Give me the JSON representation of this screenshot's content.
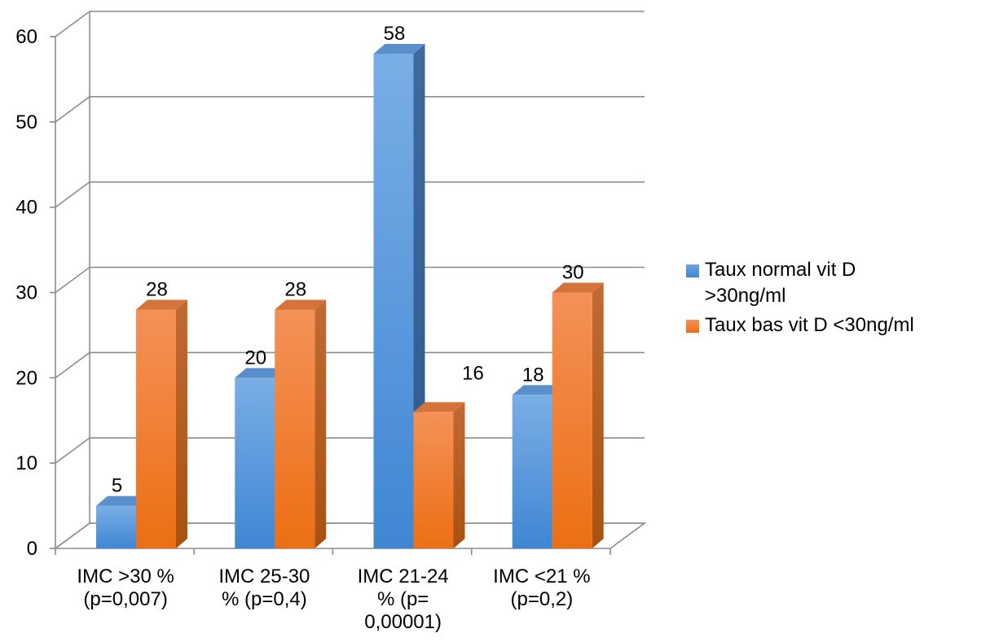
{
  "chart_data": {
    "type": "bar",
    "categories": [
      [
        "IMC >30 %",
        "(p=0,007)"
      ],
      [
        "IMC 25-30",
        "% (p=0,4)"
      ],
      [
        "IMC 21-24",
        "% (p=",
        "0,00001)"
      ],
      [
        "IMC <21 %",
        "(p=0,2)"
      ]
    ],
    "series": [
      {
        "name": "Taux normal vit D >30ng/ml",
        "values": [
          5,
          20,
          58,
          18
        ],
        "color": "#4a90d9"
      },
      {
        "name": "Taux bas vit D <30ng/ml",
        "values": [
          28,
          28,
          16,
          30
        ],
        "color": "#f07a1f"
      }
    ],
    "ylim": [
      0,
      60
    ],
    "yticks": [
      0,
      10,
      20,
      30,
      40,
      50,
      60
    ],
    "grid": true,
    "legend_position": "right",
    "style": "3d-clustered-column"
  }
}
